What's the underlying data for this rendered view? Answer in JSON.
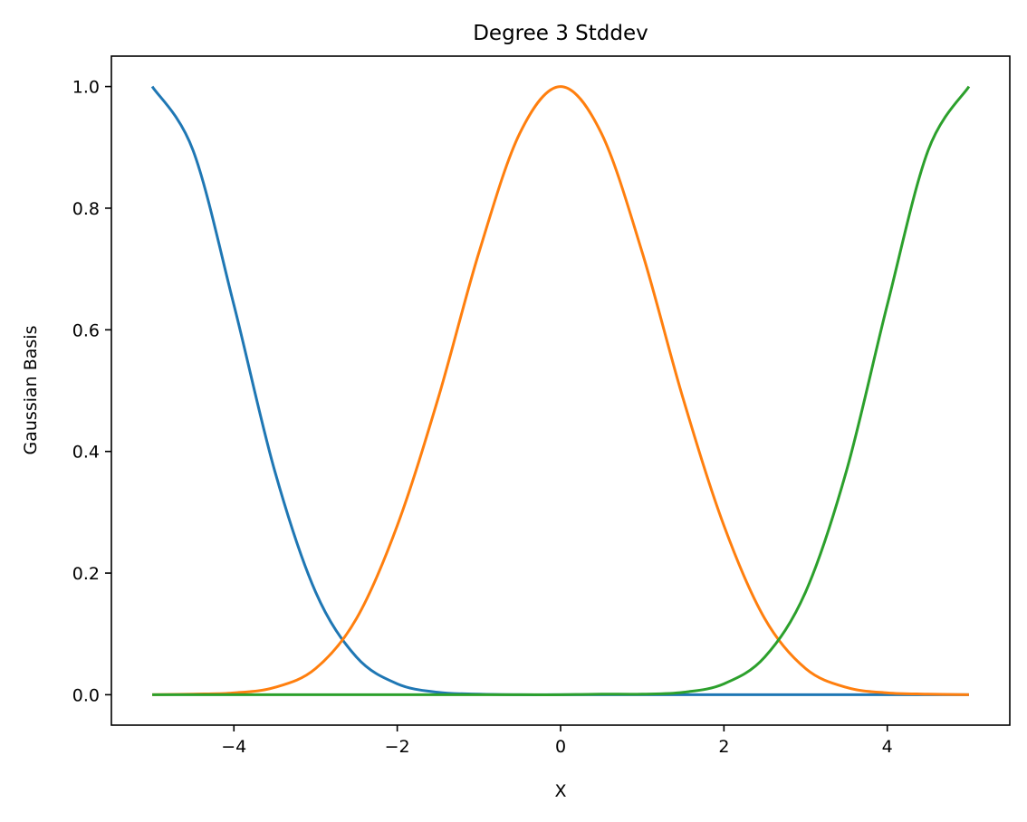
{
  "chart_data": {
    "type": "line",
    "title": "Degree 3 Stddev",
    "xlabel": "X",
    "ylabel": "Gaussian Basis",
    "xlim": [
      -5.5,
      5.5
    ],
    "ylim": [
      -0.05,
      1.05
    ],
    "xticks": [
      -4,
      -2,
      0,
      2,
      4
    ],
    "xtick_labels": [
      "−4",
      "−2",
      "0",
      "2",
      "4"
    ],
    "yticks": [
      0.0,
      0.2,
      0.4,
      0.6,
      0.8,
      1.0
    ],
    "ytick_labels": [
      "0.0",
      "0.2",
      "0.4",
      "0.6",
      "0.8",
      "1.0"
    ],
    "grid": false,
    "x": [
      -5.0,
      -4.5,
      -4.0,
      -3.5,
      -3.0,
      -2.5,
      -2.0,
      -1.5,
      -1.0,
      -0.5,
      0.0,
      0.5,
      1.0,
      1.5,
      2.0,
      2.5,
      3.0,
      3.5,
      4.0,
      4.5,
      5.0
    ],
    "series": [
      {
        "color": "#1f77b4",
        "values": [
          1.0,
          0.895,
          0.641,
          0.368,
          0.169,
          0.062,
          0.018,
          0.004,
          0.001,
          0.0,
          0.0,
          0.0,
          0.0,
          0.0,
          0.0,
          0.0,
          0.0,
          0.0,
          0.0,
          0.0,
          0.0
        ]
      },
      {
        "color": "#ff7f0e",
        "values": [
          0.0,
          0.001,
          0.003,
          0.012,
          0.043,
          0.125,
          0.278,
          0.487,
          0.727,
          0.923,
          1.0,
          0.923,
          0.727,
          0.487,
          0.278,
          0.125,
          0.043,
          0.012,
          0.003,
          0.001,
          0.0
        ]
      },
      {
        "color": "#2ca02c",
        "values": [
          0.0,
          0.0,
          0.0,
          0.0,
          0.0,
          0.0,
          0.0,
          0.0,
          0.0,
          0.0,
          0.0,
          0.001,
          0.001,
          0.004,
          0.018,
          0.062,
          0.169,
          0.368,
          0.641,
          0.895,
          1.0
        ]
      }
    ]
  }
}
